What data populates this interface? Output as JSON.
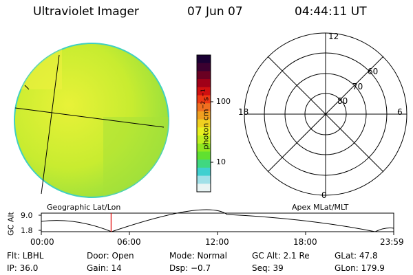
{
  "header": {
    "instrument": "Ultraviolet Imager",
    "date": "07 Jun 07",
    "time": "04:44:11 UT"
  },
  "colorbar": {
    "label": "photon cm⁻²s⁻¹",
    "label_main": "photon cm",
    "label_sup1": "−2",
    "label_mid": "s",
    "label_sup2": "−1",
    "tick_100": "100",
    "tick_10": "10",
    "colors": [
      "#1a0033",
      "#3b0030",
      "#6a0022",
      "#a00018",
      "#d01010",
      "#ee3a14",
      "#f07020",
      "#f0a020",
      "#f0d020",
      "#e8f020",
      "#c0f020",
      "#90e820",
      "#60e030",
      "#40d880",
      "#40d0d0",
      "#a0e0e8",
      "#e8f4f4"
    ]
  },
  "polar_plot": {
    "lat_labels": [
      "60",
      "70",
      "80"
    ],
    "mlt_labels": [
      "12",
      "18",
      "6",
      "0"
    ],
    "caption": "Apex MLat/MLT"
  },
  "earth_image": {
    "caption": "Geographic Lat/Lon"
  },
  "timeline": {
    "axis_label": "GC Alt",
    "y_high": "9.0",
    "y_low": "1.8",
    "x_ticks": [
      "00:00",
      "06:00",
      "12:00",
      "18:00",
      "23:59"
    ],
    "current_time_fraction": 0.198
  },
  "status": {
    "filter": "Flt: LBHL",
    "door": "Door: Open",
    "mode": "Mode: Normal",
    "gc_alt": "GC Alt: 2.1 Re",
    "glat": "GLat:  47.8",
    "ip": "IP: 36.0",
    "gain": "Gain: 14",
    "dsp": "Dsp:   −0.7",
    "seq": "Seq: 39",
    "glon": "GLon: 179.9"
  }
}
